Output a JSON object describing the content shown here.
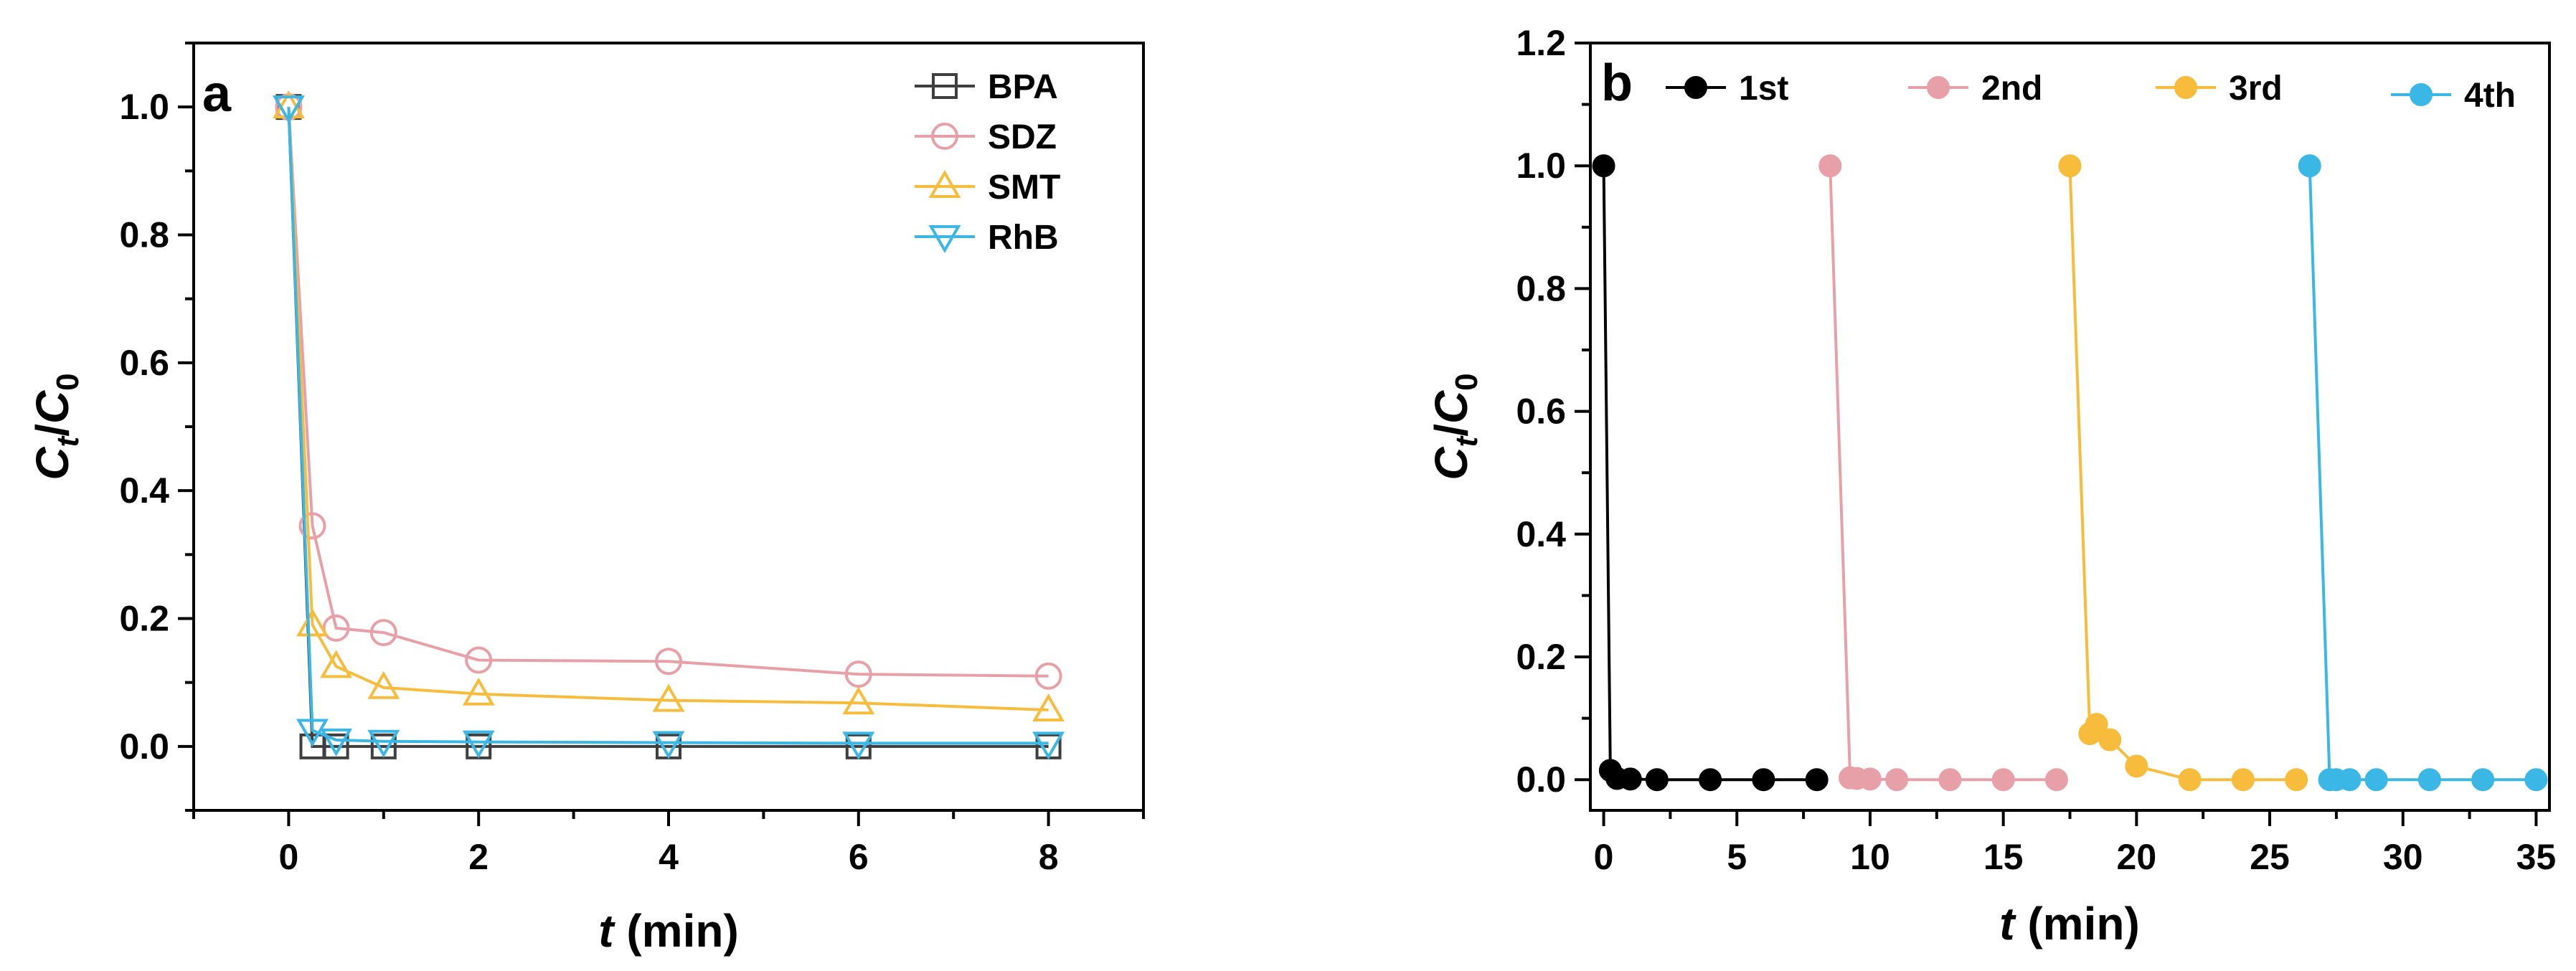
{
  "chart_data": [
    {
      "panel": "a",
      "type": "line",
      "xlabel": "t (min)",
      "ylabel": "Ct/C0",
      "xlim": [
        -1,
        9
      ],
      "ylim": [
        -0.1,
        1.1
      ],
      "xticks": [
        0,
        2,
        4,
        6,
        8
      ],
      "yticks": [
        0.0,
        0.2,
        0.4,
        0.6,
        0.8,
        1.0
      ],
      "ytick_decimals": 1,
      "legend_position": "top-right",
      "series": [
        {
          "name": "BPA",
          "color": "#3f3f3f",
          "marker": "square",
          "x": [
            0,
            0.25,
            0.5,
            1,
            2,
            4,
            6,
            8
          ],
          "y": [
            1.0,
            0.0,
            0.0,
            0.0,
            0.0,
            0.0,
            0.0,
            0.0
          ]
        },
        {
          "name": "SDZ",
          "color": "#e8a0a8",
          "marker": "circle",
          "x": [
            0,
            0.25,
            0.5,
            1,
            2,
            4,
            6,
            8
          ],
          "y": [
            1.0,
            0.345,
            0.185,
            0.178,
            0.135,
            0.133,
            0.113,
            0.11
          ]
        },
        {
          "name": "SMT",
          "color": "#f7bc3c",
          "marker": "triangle-up",
          "x": [
            0,
            0.25,
            0.5,
            1,
            2,
            4,
            6,
            8
          ],
          "y": [
            1.0,
            0.19,
            0.125,
            0.092,
            0.082,
            0.072,
            0.068,
            0.057
          ]
        },
        {
          "name": "RhB",
          "color": "#3bb7e6",
          "marker": "triangle-down",
          "x": [
            0,
            0.25,
            0.5,
            1,
            2,
            4,
            6,
            8
          ],
          "y": [
            1.0,
            0.025,
            0.01,
            0.008,
            0.007,
            0.006,
            0.005,
            0.005
          ]
        }
      ]
    },
    {
      "panel": "b",
      "type": "line",
      "xlabel": "t (min)",
      "ylabel": "Ct/C0",
      "xlim": [
        -0.5,
        35.5
      ],
      "ylim": [
        -0.05,
        1.2
      ],
      "xticks": [
        0,
        5,
        10,
        15,
        20,
        25,
        30,
        35
      ],
      "yticks": [
        0.0,
        0.2,
        0.4,
        0.6,
        0.8,
        1.0,
        1.2
      ],
      "ytick_decimals": 1,
      "legend_position": "top",
      "series": [
        {
          "name": "1st",
          "color": "#000000",
          "marker": "filled-circle",
          "x": [
            0,
            0.25,
            0.5,
            1,
            2,
            4,
            6,
            8
          ],
          "y": [
            1.0,
            0.015,
            0.002,
            0.001,
            0.0,
            0.0,
            0.0,
            0.0
          ]
        },
        {
          "name": "2nd",
          "color": "#e8a0a8",
          "marker": "filled-circle",
          "x": [
            8.5,
            9.25,
            9.5,
            10,
            11,
            13,
            15,
            17
          ],
          "y": [
            1.0,
            0.003,
            0.002,
            0.001,
            0.0,
            0.0,
            0.0,
            0.0
          ]
        },
        {
          "name": "3rd",
          "color": "#f7bc3c",
          "marker": "filled-circle",
          "x": [
            17.5,
            18.25,
            18.5,
            19,
            20,
            22,
            24,
            26
          ],
          "y": [
            1.0,
            0.075,
            0.09,
            0.065,
            0.022,
            0.0,
            0.0,
            0.0
          ]
        },
        {
          "name": "4th",
          "color": "#3bb7e6",
          "marker": "filled-circle",
          "x": [
            26.5,
            27.25,
            27.5,
            28,
            29,
            31,
            33,
            35
          ],
          "y": [
            1.0,
            0.0,
            0.0,
            0.0,
            0.0,
            0.0,
            0.0,
            0.0
          ]
        }
      ]
    }
  ]
}
